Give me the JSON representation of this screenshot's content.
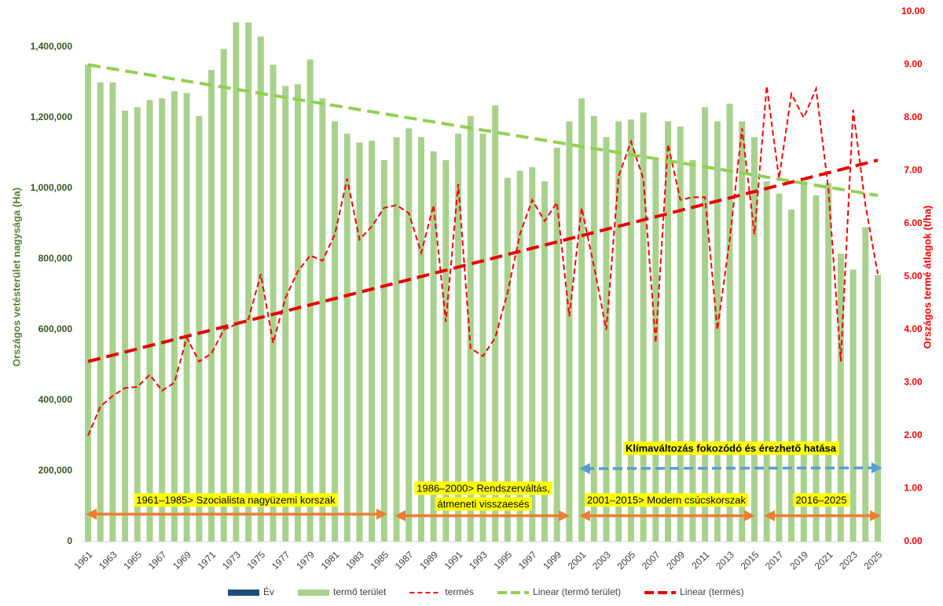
{
  "chart_data": {
    "type": "bar_line",
    "categories": [
      "1961",
      null,
      "1963",
      null,
      "1965",
      null,
      "1967",
      null,
      "1969",
      null,
      "1971",
      null,
      "1973",
      null,
      "1975",
      null,
      "1977",
      null,
      "1979",
      null,
      "1981",
      null,
      "1983",
      null,
      "1985",
      null,
      "1987",
      null,
      "1989",
      null,
      "1991",
      null,
      "1993",
      null,
      "1995",
      null,
      "1997",
      null,
      "1999",
      null,
      "2001",
      null,
      "2003",
      null,
      "2005",
      null,
      "2007",
      null,
      "2009",
      null,
      "2011",
      null,
      "2013",
      null,
      "2015",
      null,
      "2017",
      null,
      "2019",
      null,
      "2021",
      null,
      "2023",
      null,
      "2025"
    ],
    "series": [
      {
        "name": "termő terület",
        "type": "bar",
        "color": "#a9d18e",
        "axis": "y",
        "values": [
          1350000,
          1300000,
          1300000,
          1220000,
          1230000,
          1250000,
          1255000,
          1275000,
          1270000,
          1205000,
          1335000,
          1395000,
          1470000,
          1470000,
          1430000,
          1350000,
          1290000,
          1295000,
          1365000,
          1255000,
          1190000,
          1155000,
          1130000,
          1135000,
          1080000,
          1145000,
          1170000,
          1145000,
          1105000,
          1080000,
          1155000,
          1205000,
          1155000,
          1235000,
          1030000,
          1050000,
          1060000,
          1020000,
          1115000,
          1190000,
          1255000,
          1205000,
          1145000,
          1190000,
          1195000,
          1215000,
          1080000,
          1190000,
          1175000,
          1080000,
          1230000,
          1190000,
          1240000,
          1190000,
          1145000,
          1020000,
          985000,
          940000,
          1020000,
          980000,
          1015000,
          815000,
          770000,
          890000,
          755000
        ]
      },
      {
        "name": "termés",
        "type": "line",
        "color": "#ff0000",
        "axis": "y2",
        "values": [
          2.0,
          2.55,
          2.75,
          2.9,
          2.92,
          3.15,
          2.85,
          3.0,
          3.85,
          3.4,
          3.55,
          4.0,
          4.1,
          4.2,
          5.05,
          3.75,
          4.6,
          5.1,
          5.4,
          5.3,
          5.8,
          6.85,
          5.7,
          5.95,
          6.3,
          6.35,
          6.2,
          5.45,
          6.35,
          4.15,
          6.75,
          3.65,
          3.5,
          3.85,
          4.7,
          5.8,
          6.45,
          6.05,
          6.4,
          4.25,
          6.3,
          5.2,
          4.0,
          6.9,
          7.55,
          6.85,
          3.75,
          7.5,
          6.45,
          6.5,
          6.5,
          4.0,
          5.7,
          7.8,
          5.8,
          8.6,
          6.85,
          8.45,
          8.0,
          8.55,
          6.65,
          3.4,
          8.15,
          6.35,
          5.05
        ]
      }
    ],
    "trendlines": [
      {
        "name": "Linear (termő terület)",
        "color": "#92d050",
        "axis": "y",
        "values": [
          1350000,
          980000
        ]
      },
      {
        "name": "Linear (termés)",
        "color": "#e60000",
        "axis": "y2",
        "values": [
          3.4,
          7.2
        ]
      }
    ],
    "legend_only": [
      {
        "name": "Év",
        "color": "#1f4e79"
      }
    ],
    "ylabel": "Országos vetésterület nagysága (Ha)",
    "y2label": "Országos termé átlagok (t/ha)",
    "ylim": [
      0,
      1500000
    ],
    "yticks": [
      0,
      {
        "value": 200000,
        "label": "200,000"
      },
      {
        "value": 400000,
        "label": "400,000"
      },
      {
        "value": 600000,
        "label": "600,000"
      },
      {
        "value": 800000,
        "label": "800,000"
      },
      {
        "value": 1000000,
        "label": "1,000,000"
      },
      {
        "value": 1200000,
        "label": "1,200,000"
      },
      {
        "value": 1400000,
        "label": "1,400,000"
      }
    ],
    "y2lim": [
      0,
      10
    ],
    "y2ticks": [
      {
        "value": 0,
        "label": "0.00"
      },
      {
        "value": 1,
        "label": "1.00"
      },
      {
        "value": 2,
        "label": "2.00"
      },
      {
        "value": 3,
        "label": "3.00"
      },
      {
        "value": 4,
        "label": "4.00"
      },
      {
        "value": 5,
        "label": "5.00"
      },
      {
        "value": 6,
        "label": "6.00"
      },
      {
        "value": 7,
        "label": "7.00"
      },
      {
        "value": 8,
        "label": "8.00"
      },
      {
        "value": 9,
        "label": "9.00"
      },
      {
        "value": 10,
        "label": "10.00"
      }
    ],
    "annotations": [
      [
        "1961–1985> Szocialista nagyüzemi korszak"
      ],
      [
        "1986–2000> Rendszerváltás,",
        "átmeneti visszaesés"
      ],
      [
        "2001–2015> Modern csúcskorszak"
      ],
      [
        "2016–2025"
      ],
      [
        "Klímaváltozás fokozódó és érezhető hatása"
      ]
    ]
  }
}
